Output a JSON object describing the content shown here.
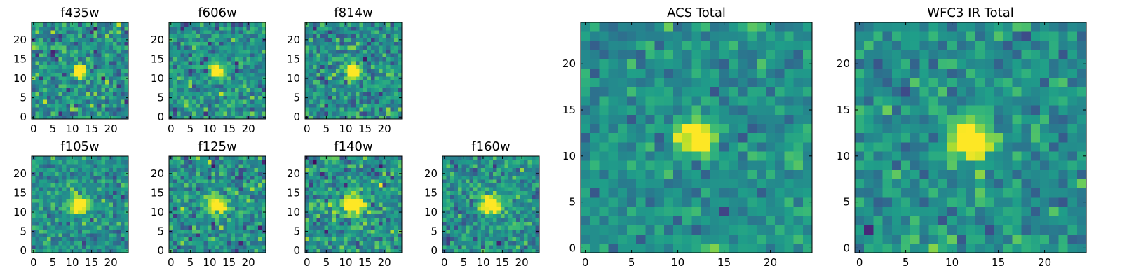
{
  "figure": {
    "description_visible": false
  },
  "chart_data": [
    {
      "type": "heatmap",
      "title": "f435w",
      "xticks": [
        "0",
        "5",
        "10",
        "15",
        "20"
      ],
      "yticks": [
        "0",
        "5",
        "10",
        "15",
        "20"
      ],
      "xlim": [
        -0.5,
        24.5
      ],
      "ylim": [
        -0.5,
        24.5
      ],
      "grid_size": [
        25,
        25
      ],
      "colormap": "viridis",
      "source": {
        "x": 12,
        "y": 12,
        "sigma": 1.2,
        "noise": 0.3,
        "seed": 11
      }
    },
    {
      "type": "heatmap",
      "title": "f606w",
      "xticks": [
        "0",
        "5",
        "10",
        "15",
        "20"
      ],
      "yticks": [
        "0",
        "5",
        "10",
        "15",
        "20"
      ],
      "xlim": [
        -0.5,
        24.5
      ],
      "ylim": [
        -0.5,
        24.5
      ],
      "grid_size": [
        25,
        25
      ],
      "colormap": "viridis",
      "source": {
        "x": 12,
        "y": 12,
        "sigma": 1.2,
        "noise": 0.26,
        "seed": 23
      }
    },
    {
      "type": "heatmap",
      "title": "f814w",
      "xticks": [
        "0",
        "5",
        "10",
        "15",
        "20"
      ],
      "yticks": [
        "0",
        "5",
        "10",
        "15",
        "20"
      ],
      "xlim": [
        -0.5,
        24.5
      ],
      "ylim": [
        -0.5,
        24.5
      ],
      "grid_size": [
        25,
        25
      ],
      "colormap": "viridis",
      "source": {
        "x": 12,
        "y": 12,
        "sigma": 1.2,
        "noise": 0.28,
        "seed": 37
      }
    },
    {
      "type": "heatmap",
      "title": "f105w",
      "xticks": [
        "0",
        "5",
        "10",
        "15",
        "20"
      ],
      "yticks": [
        "0",
        "5",
        "10",
        "15",
        "20"
      ],
      "xlim": [
        -0.5,
        24.5
      ],
      "ylim": [
        -0.5,
        24.5
      ],
      "grid_size": [
        25,
        25
      ],
      "colormap": "viridis",
      "source": {
        "x": 12,
        "y": 12,
        "sigma": 1.6,
        "noise": 0.24,
        "seed": 41
      }
    },
    {
      "type": "heatmap",
      "title": "f125w",
      "xticks": [
        "0",
        "5",
        "10",
        "15",
        "20"
      ],
      "yticks": [
        "0",
        "5",
        "10",
        "15",
        "20"
      ],
      "xlim": [
        -0.5,
        24.5
      ],
      "ylim": [
        -0.5,
        24.5
      ],
      "grid_size": [
        25,
        25
      ],
      "colormap": "viridis",
      "source": {
        "x": 12,
        "y": 12,
        "sigma": 1.6,
        "noise": 0.3,
        "seed": 53
      }
    },
    {
      "type": "heatmap",
      "title": "f140w",
      "xticks": [
        "0",
        "5",
        "10",
        "15",
        "20"
      ],
      "yticks": [
        "0",
        "5",
        "10",
        "15",
        "20"
      ],
      "xlim": [
        -0.5,
        24.5
      ],
      "ylim": [
        -0.5,
        24.5
      ],
      "grid_size": [
        25,
        25
      ],
      "colormap": "viridis",
      "source": {
        "x": 12,
        "y": 12,
        "sigma": 1.7,
        "noise": 0.28,
        "seed": 67
      }
    },
    {
      "type": "heatmap",
      "title": "f160w",
      "xticks": [
        "0",
        "5",
        "10",
        "15",
        "20"
      ],
      "yticks": [
        "0",
        "5",
        "10",
        "15",
        "20"
      ],
      "xlim": [
        -0.5,
        24.5
      ],
      "ylim": [
        -0.5,
        24.5
      ],
      "grid_size": [
        25,
        25
      ],
      "colormap": "viridis",
      "source": {
        "x": 12,
        "y": 12,
        "sigma": 1.8,
        "noise": 0.26,
        "seed": 79
      }
    },
    {
      "type": "heatmap",
      "title": "ACS Total",
      "xticks": [
        "0",
        "5",
        "10",
        "15",
        "20"
      ],
      "yticks": [
        "0",
        "5",
        "10",
        "15",
        "20"
      ],
      "xlim": [
        -0.5,
        24.5
      ],
      "ylim": [
        -0.5,
        24.5
      ],
      "grid_size": [
        25,
        25
      ],
      "colormap": "viridis",
      "source": {
        "x": 12,
        "y": 12,
        "sigma": 1.2,
        "noise": 0.2,
        "seed": 97
      }
    },
    {
      "type": "heatmap",
      "title": "WFC3 IR Total",
      "xticks": [
        "0",
        "5",
        "10",
        "15",
        "20"
      ],
      "yticks": [
        "0",
        "5",
        "10",
        "15",
        "20"
      ],
      "xlim": [
        -0.5,
        24.5
      ],
      "ylim": [
        -0.5,
        24.5
      ],
      "grid_size": [
        25,
        25
      ],
      "colormap": "viridis",
      "source": {
        "x": 12,
        "y": 12,
        "sigma": 1.5,
        "noise": 0.22,
        "seed": 113
      }
    }
  ]
}
